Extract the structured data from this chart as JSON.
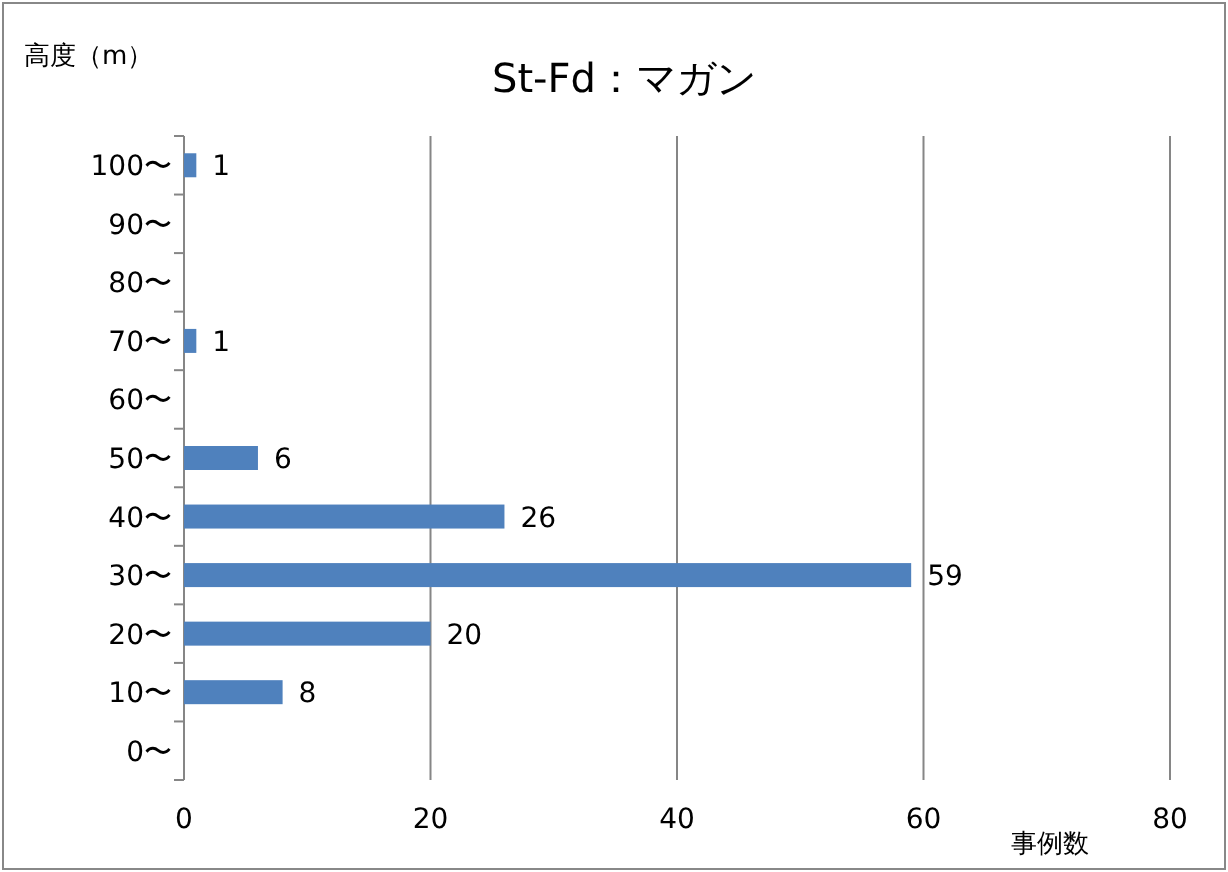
{
  "chart_data": {
    "type": "bar",
    "orientation": "horizontal",
    "title": "St-Fd：マガン",
    "xlabel": "事例数",
    "ylabel": "高度（m）",
    "categories": [
      "100〜",
      "90〜",
      "80〜",
      "70〜",
      "60〜",
      "50〜",
      "40〜",
      "30〜",
      "20〜",
      "10〜",
      "0〜"
    ],
    "values": [
      1,
      null,
      null,
      1,
      null,
      6,
      26,
      59,
      20,
      8,
      null
    ],
    "color": "#4f81bd",
    "xlim": [
      0,
      80
    ],
    "xticks": [
      0,
      20,
      40,
      60,
      80
    ],
    "grid": "x",
    "data_labels": true
  }
}
